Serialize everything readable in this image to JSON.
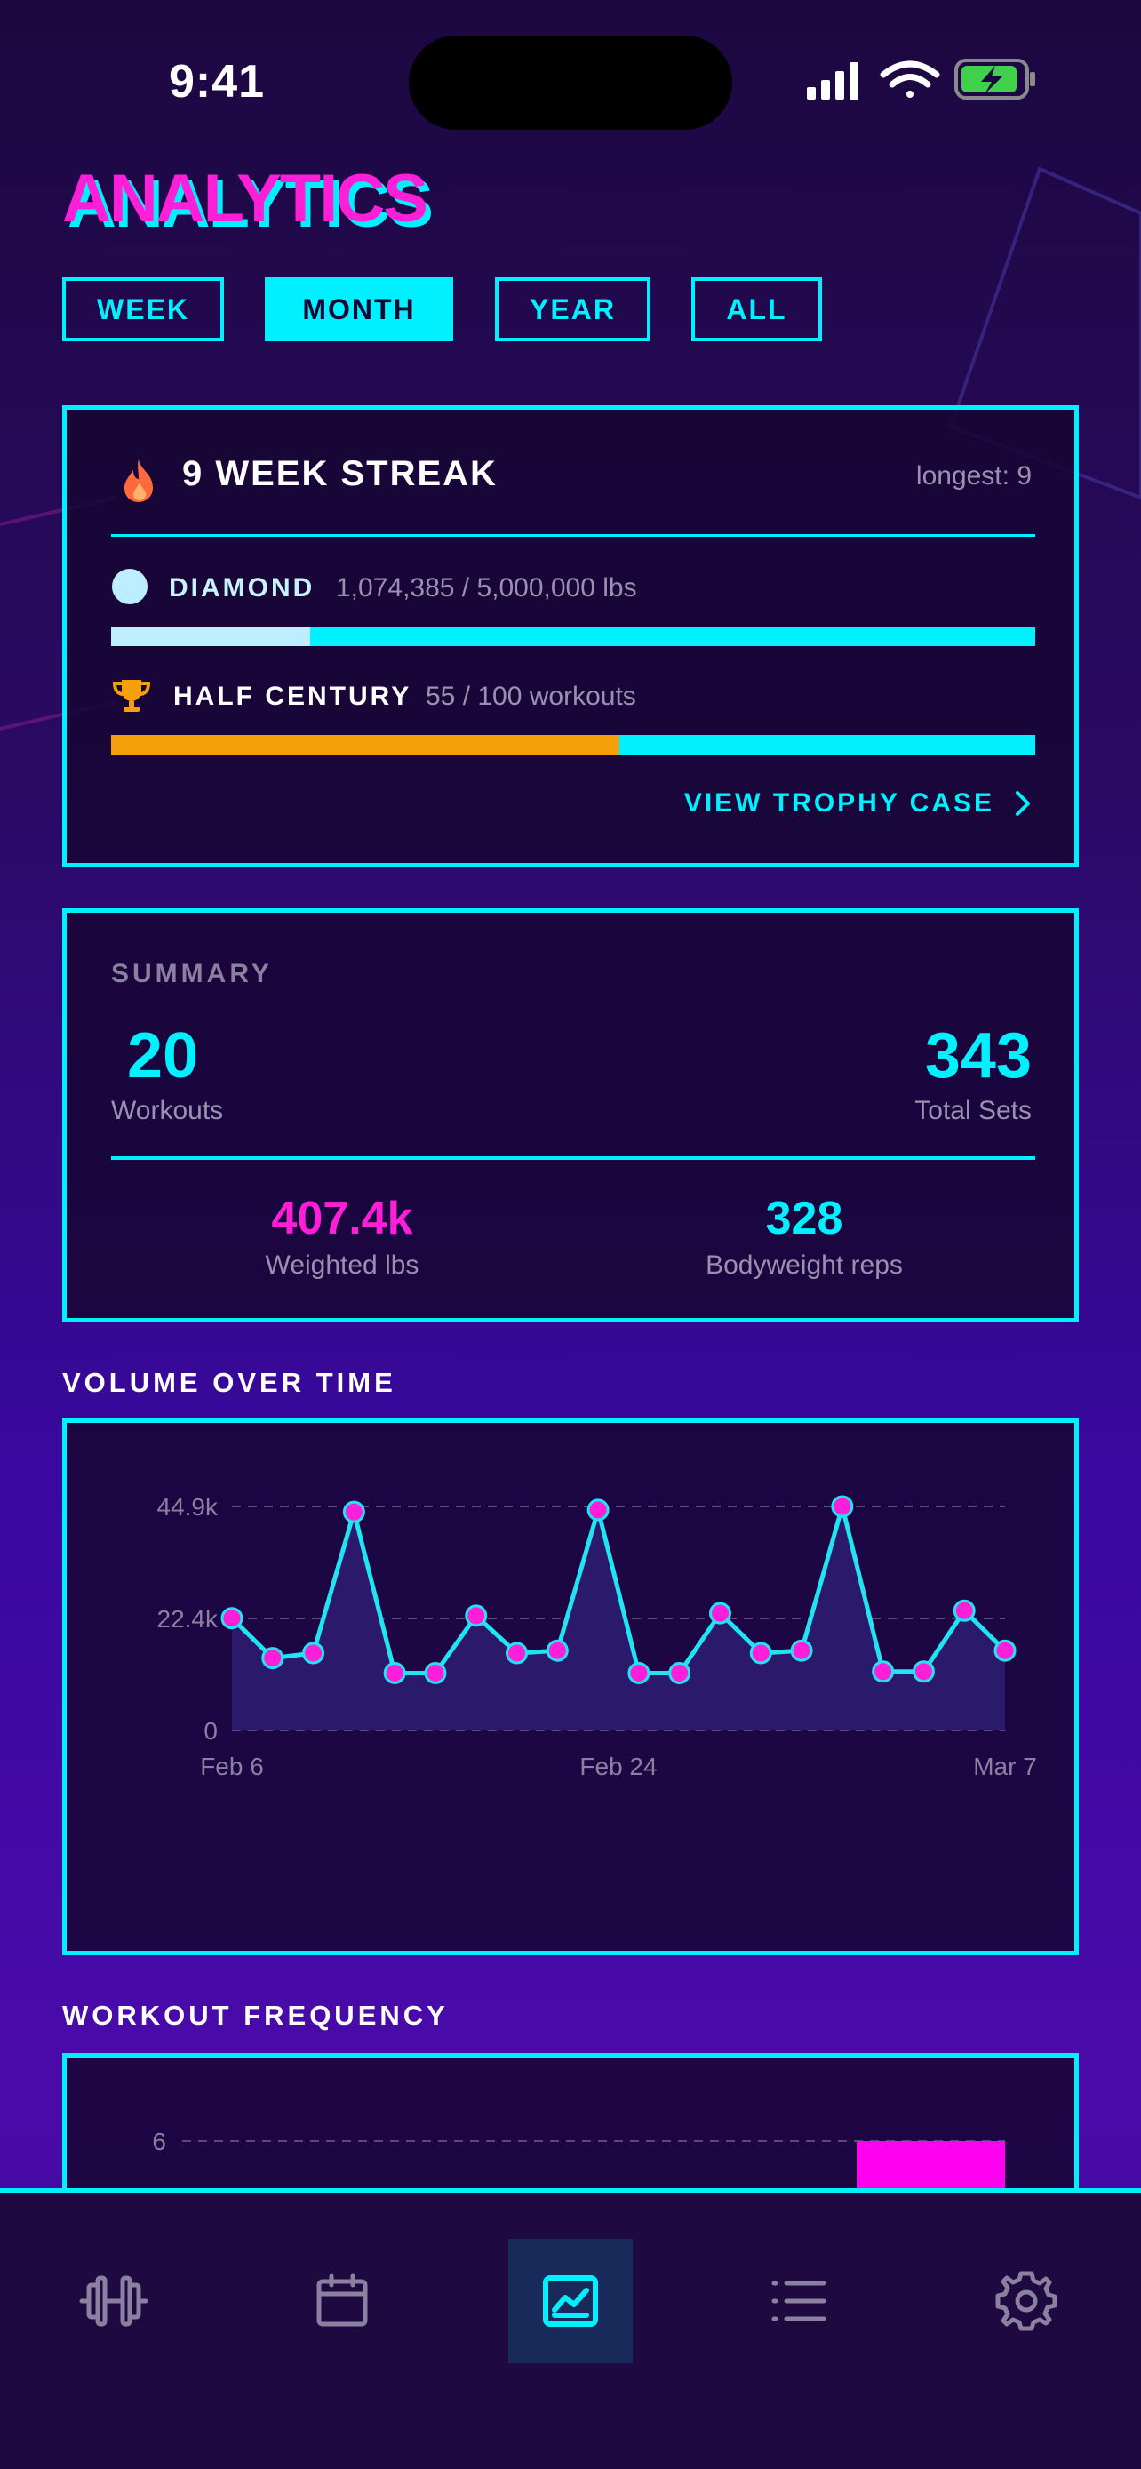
{
  "status_bar": {
    "time": "9:41"
  },
  "header": {
    "title": "ANALYTICS"
  },
  "period_tabs": [
    {
      "label": "WEEK",
      "active": false
    },
    {
      "label": "MONTH",
      "active": true
    },
    {
      "label": "YEAR",
      "active": false
    },
    {
      "label": "ALL",
      "active": false
    }
  ],
  "streak": {
    "title": "9 WEEK STREAK",
    "longest": "longest: 9",
    "achievements": [
      {
        "name": "DIAMOND",
        "detail": "1,074,385 / 5,000,000 lbs",
        "progress": 0.215,
        "fill_color": "#bdeeff",
        "icon": "circle-icon"
      },
      {
        "name": "HALF CENTURY",
        "detail": "55 / 100 workouts",
        "progress": 0.55,
        "fill_color": "#f5a00a",
        "icon": "trophy-icon"
      }
    ],
    "trophy_link": "VIEW TROPHY CASE"
  },
  "summary": {
    "label": "SUMMARY",
    "workouts_value": "20",
    "workouts_label": "Workouts",
    "sets_value": "343",
    "sets_label": "Total Sets",
    "weighted_value": "407.4k",
    "weighted_label": "Weighted lbs",
    "bodyweight_value": "328",
    "bodyweight_label": "Bodyweight reps"
  },
  "volume_section": {
    "label": "VOLUME OVER TIME"
  },
  "frequency_section": {
    "label": "WORKOUT FREQUENCY"
  },
  "chart_data": [
    {
      "type": "area",
      "title": "VOLUME OVER TIME",
      "y_ticks": [
        "44.9k",
        "22.4k",
        "0"
      ],
      "ylim": [
        0,
        44900
      ],
      "x_tick_labels": [
        "Feb 6",
        "Feb 24",
        "Mar 7"
      ],
      "values": [
        22500,
        14500,
        15500,
        43800,
        11500,
        11500,
        23000,
        15500,
        16000,
        44200,
        11500,
        11500,
        23500,
        15500,
        16000,
        44900,
        11800,
        11800,
        24000,
        16000
      ],
      "grid": true,
      "colors": {
        "line": "#21e3f2",
        "fill": "#2c1a6e",
        "point": "#ff1fd8"
      }
    },
    {
      "type": "bar",
      "title": "WORKOUT FREQUENCY",
      "y_ticks": [
        "6"
      ],
      "grid": true,
      "colors": {
        "bar": "#ff00f0"
      }
    }
  ],
  "nav": [
    {
      "icon": "dumbbell-icon",
      "active": false
    },
    {
      "icon": "calendar-icon",
      "active": false
    },
    {
      "icon": "chart-icon",
      "active": true
    },
    {
      "icon": "list-icon",
      "active": false
    },
    {
      "icon": "gear-icon",
      "active": false
    }
  ]
}
